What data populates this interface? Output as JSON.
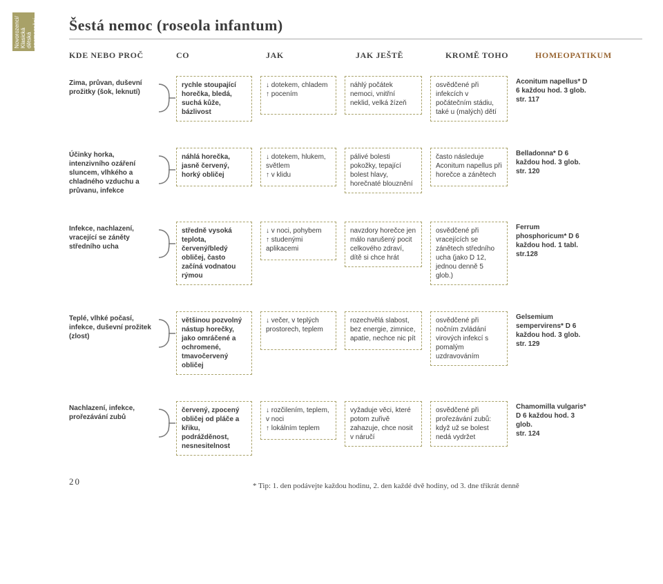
{
  "sideTab": "Novorozenci/\nKlasická dětská\nonemocnění",
  "title": "Šestá nemoc (roseola infantum)",
  "headers": {
    "h1": "KDE NEBO PROČ",
    "h2": "CO",
    "h3": "JAK",
    "h4": "JAK JEŠTĚ",
    "h5": "KROMĚ TOHO",
    "h6": "HOMEOPATIKUM"
  },
  "rows": [
    {
      "c1": "Zima, průvan, duševní prožitky (šok, leknutí)",
      "c2": "rychle stoupající horečka, bledá, suchá kůže, bázlivost",
      "c3": "↓ dotekem, chladem\n↑ pocením",
      "c4": "náhlý počátek nemoci, vnitřní neklid, velká žízeň",
      "c5": "osvědčené při infekcích v počátečním stádiu, také u (malých) dětí",
      "c6": "Aconitum napellus* D 6 každou hod. 3 glob.\nstr. 117"
    },
    {
      "c1": "Účinky horka, intenzivního ozáření sluncem, vlhkého a chladného vzduchu a průvanu, infekce",
      "c2": "náhlá horečka, jasně červený, horký obličej",
      "c3": "↓ dotekem, hlukem, světlem\n↑ v klidu",
      "c4": "pálivé bolesti pokožky, tepající bolest hlavy, horečnaté blouznění",
      "c5": "často následuje Aconitum napellus při horečce a zánětech",
      "c6": "Belladonna* D 6 každou hod. 3 glob.\nstr. 120"
    },
    {
      "c1": "Infekce, nachlazení, vracející se záněty středního ucha",
      "c2": "středně vysoká teplota, červený/bledý obličej, často začíná vodnatou rýmou",
      "c3": "↓ v noci, pohybem\n↑ studenými aplikacemi",
      "c4": "navzdory horečce jen málo narušený pocit celkového zdraví, dítě si chce hrát",
      "c5": "osvědčené při vracejících se zánětech středního ucha (jako D 12, jednou denně 5 glob.)",
      "c6": "Ferrum phosphoricum* D 6\nkaždou hod. 1 tabl.\nstr.128"
    },
    {
      "c1": "Teplé, vlhké počasí, infekce, duševní prožitek (zlost)",
      "c2": "většinou pozvolný nástup horečky, jako omráčené a ochromené, tmavočervený obličej",
      "c3": "↓ večer, v teplých prostorech, teplem",
      "c4": "rozechvělá slabost, bez energie, zimnice, apatie, nechce nic pít",
      "c5": "osvědčené při nočním zvládání virových infekcí s pomalým uzdravováním",
      "c6": "Gelsemium sempervirens* D 6\nkaždou hod. 3 glob.\nstr. 129"
    },
    {
      "c1": "Nachlazení, infekce, prořezávání zubů",
      "c2": "červený, zpocený obličej od pláče a křiku, podrážděnost, nesnesitelnost",
      "c3": "↓ rozčilením, teplem, v noci\n↑ lokálním teplem",
      "c4": "vyžaduje věci, které potom zuřivě zahazuje, chce nosit v náručí",
      "c5": "osvědčené při prořezávání zubů: když už se bolest nedá vydržet",
      "c6": "Chamomilla vulgaris* D 6 každou hod. 3 glob.\nstr. 124"
    }
  ],
  "footnote": "* Tip: 1. den podávejte každou hodinu, 2. den každé dvě hodiny, od 3. dne třikrát denně",
  "pageNum": "20",
  "colors": {
    "accent": "#a8a168",
    "header6": "#996633"
  }
}
